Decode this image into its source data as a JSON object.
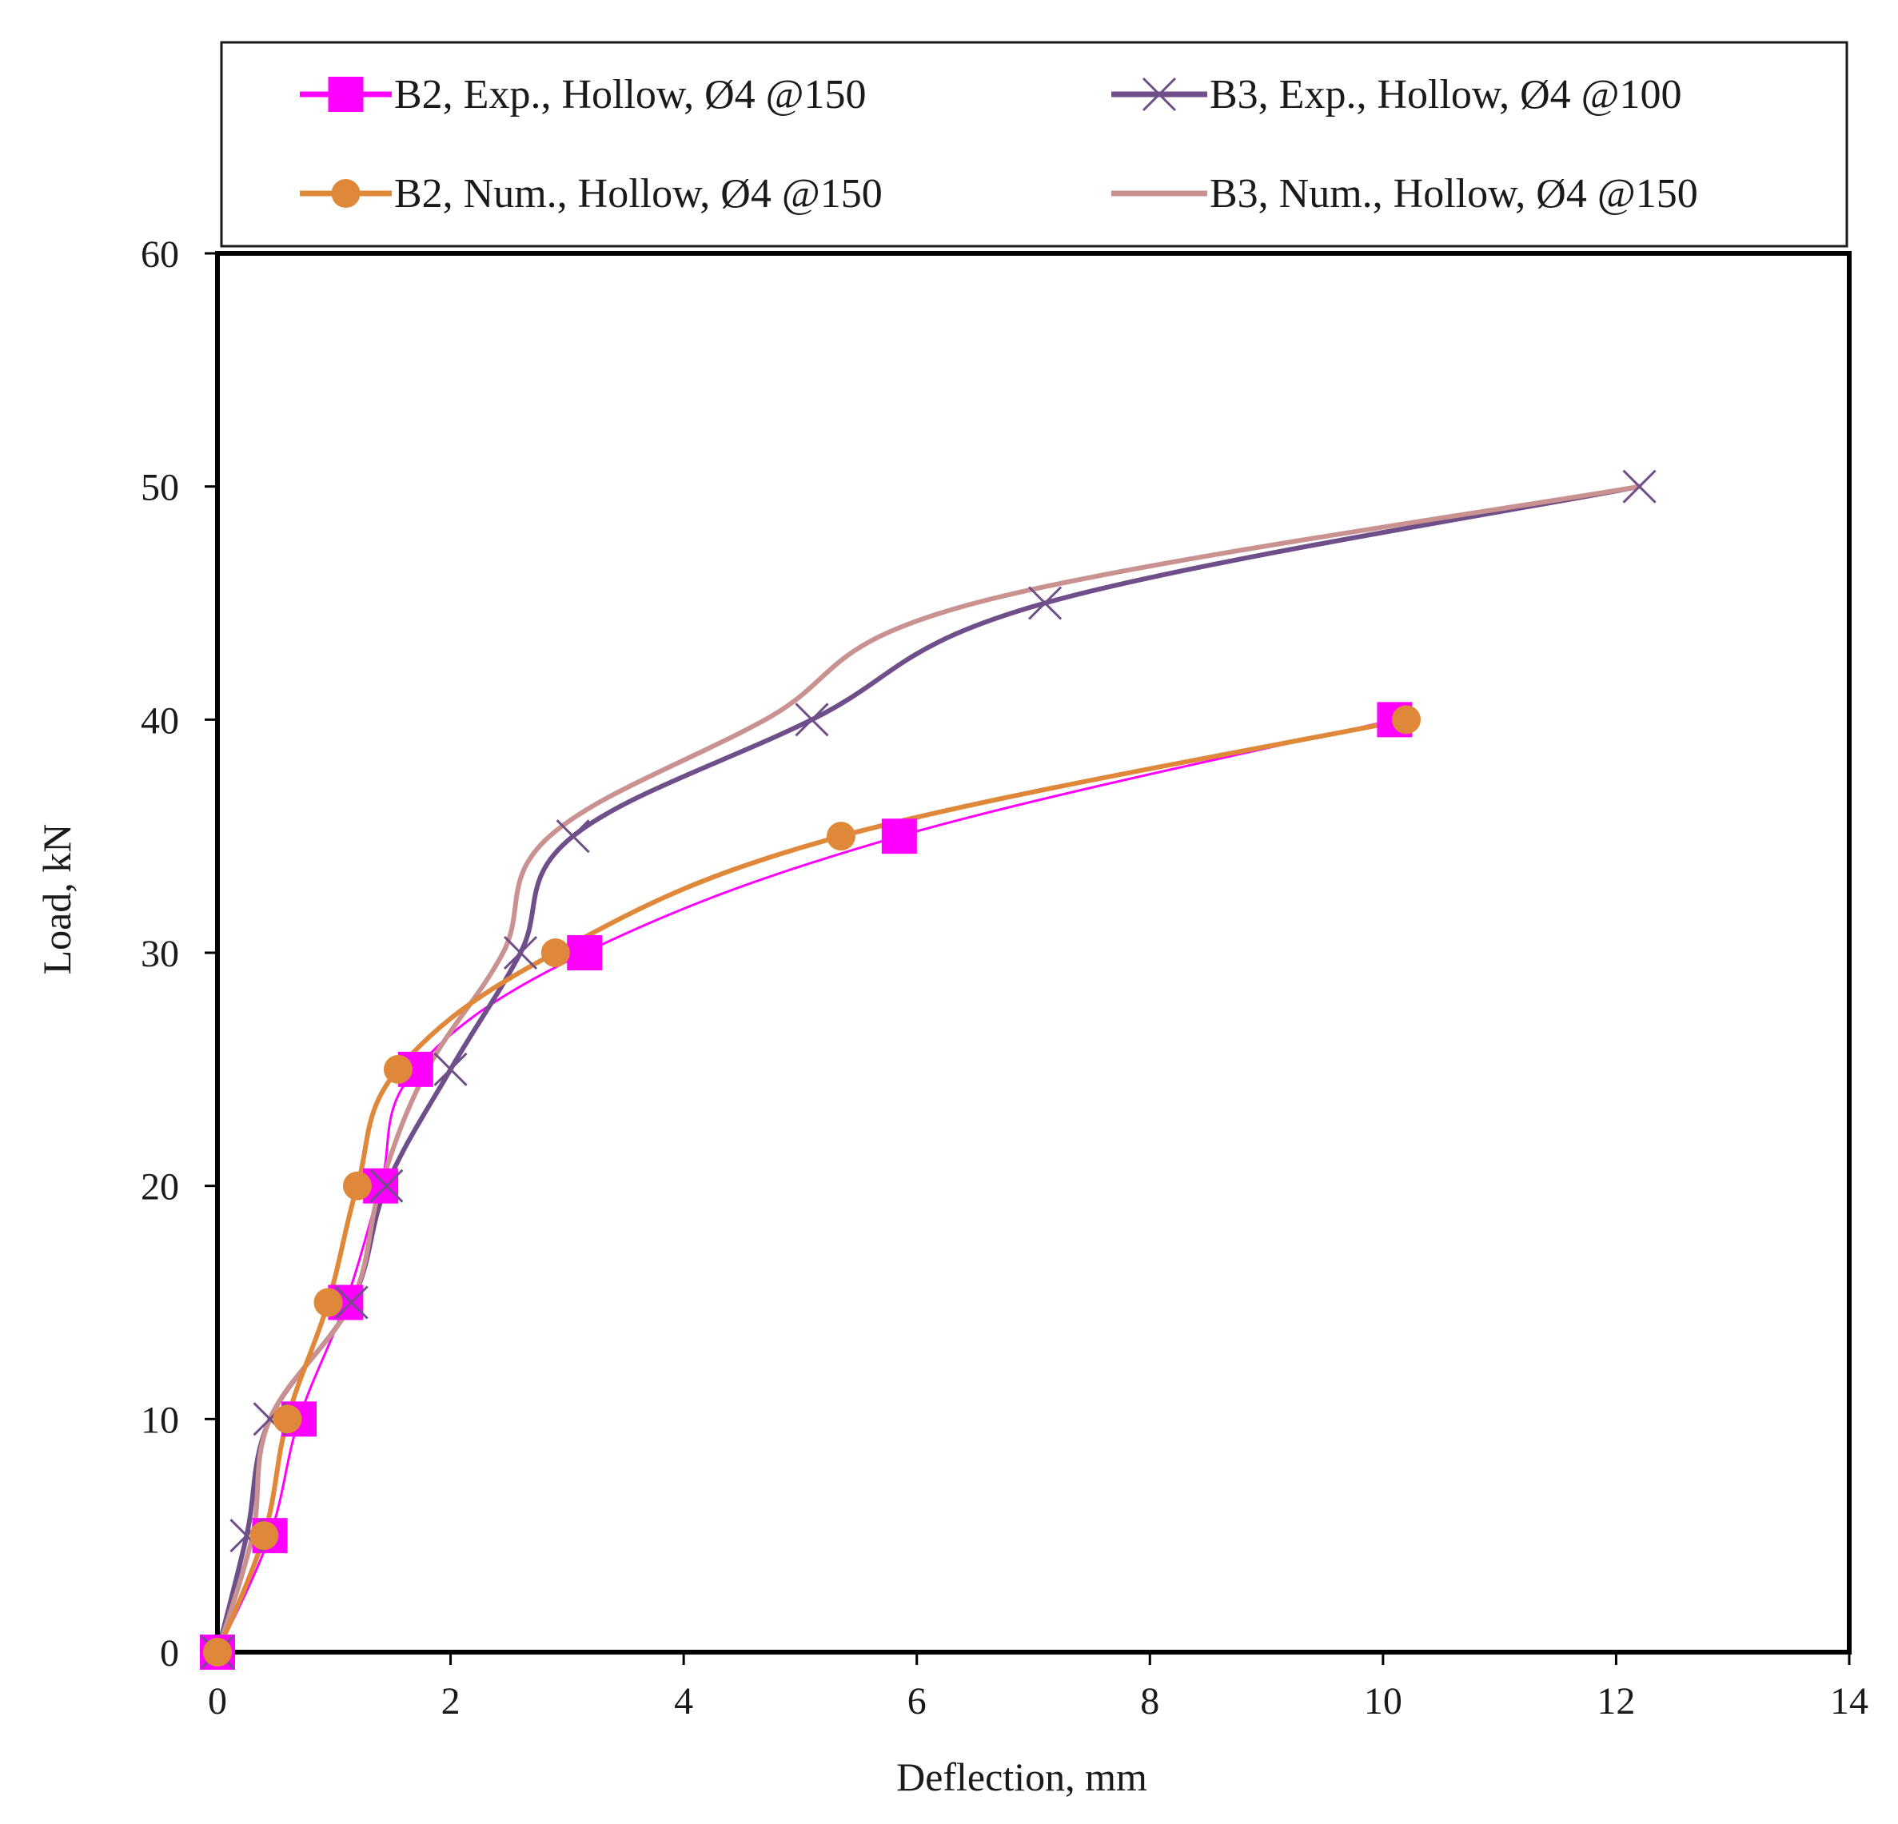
{
  "chart_data": {
    "type": "line",
    "title": "",
    "xlabel": "Deflection, mm",
    "ylabel": "Load, kN",
    "xlim": [
      0,
      14
    ],
    "ylim": [
      0,
      60
    ],
    "xticks": [
      0,
      2,
      4,
      6,
      8,
      10,
      12,
      14
    ],
    "yticks": [
      0,
      10,
      20,
      30,
      40,
      50,
      60
    ],
    "grid": false,
    "legend_position": "top",
    "series": [
      {
        "name": "B2, Exp., Hollow, Ø4 @150",
        "color": "#ff00ff",
        "marker": "square",
        "x": [
          0,
          0.45,
          0.7,
          1.1,
          1.4,
          1.7,
          3.15,
          5.85,
          10.1
        ],
        "y": [
          0,
          5,
          10,
          15,
          20,
          25,
          30,
          35,
          40
        ]
      },
      {
        "name": "B3, Exp., Hollow, Ø4 @100",
        "color": "#6e4f8a",
        "marker": "x",
        "x": [
          0,
          0.25,
          0.45,
          1.15,
          1.45,
          2.0,
          2.6,
          3.05,
          5.1,
          7.1,
          12.2
        ],
        "y": [
          0,
          5,
          10,
          15,
          20,
          25,
          30,
          35,
          40,
          45,
          50
        ]
      },
      {
        "name": "B2, Num., Hollow, Ø4 @150",
        "color": "#e0883a",
        "marker": "circle",
        "x": [
          0,
          0.4,
          0.6,
          0.95,
          1.2,
          1.55,
          2.9,
          5.35,
          10.2
        ],
        "y": [
          0,
          5,
          10,
          15,
          20,
          25,
          30,
          35,
          40
        ]
      },
      {
        "name": "B3, Num., Hollow, Ø4 @150",
        "color": "#c99190",
        "marker": "none",
        "x": [
          0,
          0.3,
          0.45,
          1.15,
          1.4,
          1.8,
          2.45,
          2.85,
          4.7,
          6.5,
          12.2
        ],
        "y": [
          0,
          5,
          10,
          15,
          20,
          25,
          30,
          35,
          40,
          45,
          50
        ]
      }
    ]
  }
}
